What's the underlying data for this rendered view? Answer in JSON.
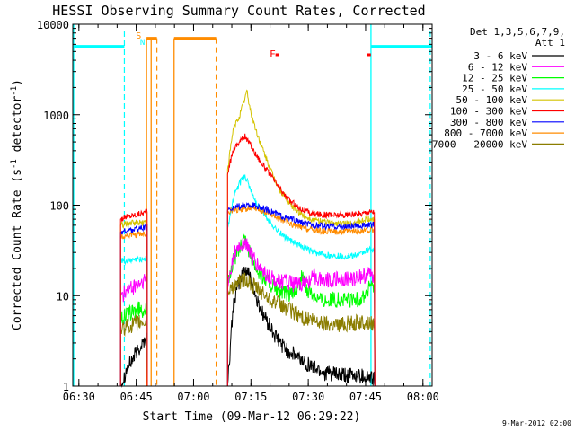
{
  "chart_data": {
    "type": "line",
    "title": "HESSI Observing Summary Count Rates, Corrected",
    "xlabel": "Start Time (09-Mar-12 06:29:22)",
    "ylabel_main": "Corrected Count Rate (s",
    "ylabel_sup1": "-1",
    "ylabel_mid": " detector",
    "ylabel_sup2": "-1",
    "ylabel_end": ")",
    "y_scale": "log",
    "ylim": [
      1,
      10000
    ],
    "xlim_minutes": [
      -1,
      93
    ],
    "x_ticks": [
      "06:30",
      "06:45",
      "07:00",
      "07:15",
      "07:30",
      "07:45",
      "08:00"
    ],
    "x_tick_minutes": [
      0.6,
      15.6,
      30.6,
      45.6,
      60.6,
      75.6,
      90.6
    ],
    "y_ticks": [
      "1",
      "10",
      "100",
      "1000",
      "10000"
    ],
    "y_tick_values": [
      1,
      10,
      100,
      1000,
      10000
    ],
    "timestamp": "9-Mar-2012 02:00",
    "legend_header": [
      "Det 1,3,5,6,7,9,",
      "Att 1"
    ],
    "legend": [
      {
        "label": "3 - 6 keV",
        "color": "#000000"
      },
      {
        "label": "6 - 12 keV",
        "color": "#ff00ff"
      },
      {
        "label": "12 - 25 keV",
        "color": "#00ff00"
      },
      {
        "label": "25 - 50 keV",
        "color": "#00ffff"
      },
      {
        "label": "50 - 100 keV",
        "color": "#d4c300"
      },
      {
        "label": "100 - 300 keV",
        "color": "#ff0000"
      },
      {
        "label": "300 - 800 keV",
        "color": "#0000ff"
      },
      {
        "label": "800 - 7000 keV",
        "color": "#ff8c00"
      },
      {
        "label": "7000 - 20000 keV",
        "color": "#8b7d00"
      }
    ],
    "annotations": {
      "saa": "S",
      "night": "N",
      "flare": "F"
    },
    "segments": [
      [
        11.5,
        18.5
      ],
      [
        39.5,
        78
      ]
    ],
    "series": [
      {
        "name": "3 - 6 keV",
        "color": "#000000",
        "points": [
          [
            11.5,
            1.0
          ],
          [
            13,
            1.5
          ],
          [
            16,
            2.5
          ],
          [
            18.5,
            3.5
          ],
          [
            39.5,
            1.0
          ],
          [
            41,
            8
          ],
          [
            42.5,
            14
          ],
          [
            44,
            20
          ],
          [
            45.5,
            16
          ],
          [
            47,
            9
          ],
          [
            49,
            6
          ],
          [
            52,
            3.5
          ],
          [
            55,
            2.5
          ],
          [
            60,
            1.8
          ],
          [
            65,
            1.4
          ],
          [
            70,
            1.3
          ],
          [
            75,
            1.3
          ],
          [
            78,
            1.2
          ]
        ]
      },
      {
        "name": "6 - 12 keV",
        "color": "#ff00ff",
        "points": [
          [
            11.5,
            10
          ],
          [
            13,
            11
          ],
          [
            16,
            13
          ],
          [
            18.5,
            15
          ],
          [
            39.5,
            12
          ],
          [
            41,
            28
          ],
          [
            42.5,
            34
          ],
          [
            44,
            38
          ],
          [
            45.5,
            30
          ],
          [
            47,
            22
          ],
          [
            50,
            16
          ],
          [
            55,
            14
          ],
          [
            58,
            13
          ],
          [
            60,
            14
          ],
          [
            62,
            16
          ],
          [
            65,
            15
          ],
          [
            70,
            15
          ],
          [
            74,
            16
          ],
          [
            76,
            17
          ],
          [
            78,
            17
          ]
        ]
      },
      {
        "name": "12 - 25 keV",
        "color": "#00ff00",
        "points": [
          [
            11.5,
            6
          ],
          [
            13,
            6
          ],
          [
            16,
            7
          ],
          [
            18.5,
            7
          ],
          [
            39.5,
            14
          ],
          [
            41,
            25
          ],
          [
            42.5,
            30
          ],
          [
            44,
            45
          ],
          [
            45.5,
            28
          ],
          [
            47,
            20
          ],
          [
            50,
            14
          ],
          [
            53,
            11
          ],
          [
            56,
            10
          ],
          [
            58,
            12
          ],
          [
            59,
            17
          ],
          [
            60,
            12
          ],
          [
            64,
            9
          ],
          [
            70,
            9
          ],
          [
            74,
            9
          ],
          [
            76,
            11
          ],
          [
            77,
            14
          ],
          [
            78,
            10
          ]
        ]
      },
      {
        "name": "25 - 50 keV",
        "color": "#00ffff",
        "points": [
          [
            11.5,
            25
          ],
          [
            13,
            24
          ],
          [
            16,
            25
          ],
          [
            18.5,
            26
          ],
          [
            39.5,
            55
          ],
          [
            41,
            120
          ],
          [
            42.5,
            170
          ],
          [
            44,
            210
          ],
          [
            45.5,
            150
          ],
          [
            47,
            105
          ],
          [
            50,
            70
          ],
          [
            53,
            50
          ],
          [
            56,
            40
          ],
          [
            59,
            35
          ],
          [
            62,
            30
          ],
          [
            66,
            28
          ],
          [
            70,
            27
          ],
          [
            74,
            28
          ],
          [
            76,
            32
          ],
          [
            78,
            32
          ]
        ]
      },
      {
        "name": "50 - 100 keV",
        "color": "#d4c300",
        "points": [
          [
            11.5,
            60
          ],
          [
            13,
            62
          ],
          [
            16,
            64
          ],
          [
            18.5,
            65
          ],
          [
            39.5,
            250
          ],
          [
            41,
            700
          ],
          [
            42.5,
            950
          ],
          [
            44,
            1500
          ],
          [
            44.5,
            1850
          ],
          [
            45.5,
            1100
          ],
          [
            47,
            650
          ],
          [
            49,
            380
          ],
          [
            51,
            230
          ],
          [
            53,
            150
          ],
          [
            56,
            100
          ],
          [
            59,
            78
          ],
          [
            62,
            68
          ],
          [
            66,
            64
          ],
          [
            70,
            62
          ],
          [
            74,
            65
          ],
          [
            76,
            70
          ],
          [
            78,
            70
          ]
        ]
      },
      {
        "name": "100 - 300 keV",
        "color": "#ff0000",
        "points": [
          [
            11.5,
            70
          ],
          [
            13,
            75
          ],
          [
            16,
            80
          ],
          [
            18.5,
            85
          ],
          [
            39.5,
            220
          ],
          [
            41,
            420
          ],
          [
            42.5,
            500
          ],
          [
            44,
            580
          ],
          [
            45.5,
            460
          ],
          [
            47,
            360
          ],
          [
            49,
            270
          ],
          [
            52,
            180
          ],
          [
            55,
            120
          ],
          [
            58,
            95
          ],
          [
            61,
            82
          ],
          [
            65,
            78
          ],
          [
            70,
            78
          ],
          [
            74,
            80
          ],
          [
            76,
            85
          ],
          [
            78,
            85
          ]
        ]
      },
      {
        "name": "300 - 800 keV",
        "color": "#0000ff",
        "points": [
          [
            11.5,
            50
          ],
          [
            13,
            52
          ],
          [
            16,
            55
          ],
          [
            18.5,
            57
          ],
          [
            39.5,
            88
          ],
          [
            41,
            95
          ],
          [
            42.5,
            97
          ],
          [
            44,
            99
          ],
          [
            46,
            100
          ],
          [
            48,
            95
          ],
          [
            51,
            85
          ],
          [
            54,
            75
          ],
          [
            57,
            68
          ],
          [
            60,
            62
          ],
          [
            64,
            59
          ],
          [
            68,
            58
          ],
          [
            72,
            58
          ],
          [
            76,
            60
          ],
          [
            78,
            61
          ]
        ]
      },
      {
        "name": "800 - 7000 keV",
        "color": "#ff8c00",
        "points": [
          [
            11.5,
            45
          ],
          [
            13,
            46
          ],
          [
            16,
            47
          ],
          [
            18.5,
            48
          ],
          [
            39.5,
            85
          ],
          [
            41,
            88
          ],
          [
            42.5,
            90
          ],
          [
            44,
            92
          ],
          [
            46,
            92
          ],
          [
            48,
            88
          ],
          [
            51,
            78
          ],
          [
            54,
            68
          ],
          [
            57,
            60
          ],
          [
            60,
            55
          ],
          [
            64,
            52
          ],
          [
            68,
            51
          ],
          [
            72,
            51
          ],
          [
            76,
            52
          ],
          [
            78,
            53
          ]
        ]
      },
      {
        "name": "7000 - 20000 keV",
        "color": "#8b7d00",
        "points": [
          [
            11.5,
            4
          ],
          [
            13,
            4.5
          ],
          [
            16,
            5
          ],
          [
            18.5,
            5
          ],
          [
            39.5,
            11
          ],
          [
            41,
            13
          ],
          [
            42.5,
            14
          ],
          [
            44,
            15
          ],
          [
            46,
            13
          ],
          [
            48,
            11
          ],
          [
            51,
            9
          ],
          [
            54,
            7.5
          ],
          [
            57,
            6.5
          ],
          [
            60,
            5.5
          ],
          [
            64,
            5
          ],
          [
            68,
            4.8
          ],
          [
            72,
            5
          ],
          [
            76,
            5
          ],
          [
            78,
            5
          ]
        ]
      }
    ],
    "state_bars": {
      "cyan_level": 5700,
      "cyan_segments": [
        [
          -1,
          12.5
        ],
        [
          77,
          93
        ]
      ],
      "cyan_solid_vlines": [
        -1,
        77
      ],
      "cyan_dashed_vlines": [
        12.5,
        92.5
      ],
      "orange_solid_vlines": [
        18.3,
        19.5,
        25.5
      ],
      "orange_dashed_vlines": [
        21,
        36.5
      ],
      "orange_level": 7000,
      "orange_segments": [
        [
          18.3,
          21
        ],
        [
          25.5,
          36.5
        ]
      ],
      "red_markers": [
        [
          52.5,
          4600
        ],
        [
          76.5,
          4600
        ]
      ]
    }
  }
}
